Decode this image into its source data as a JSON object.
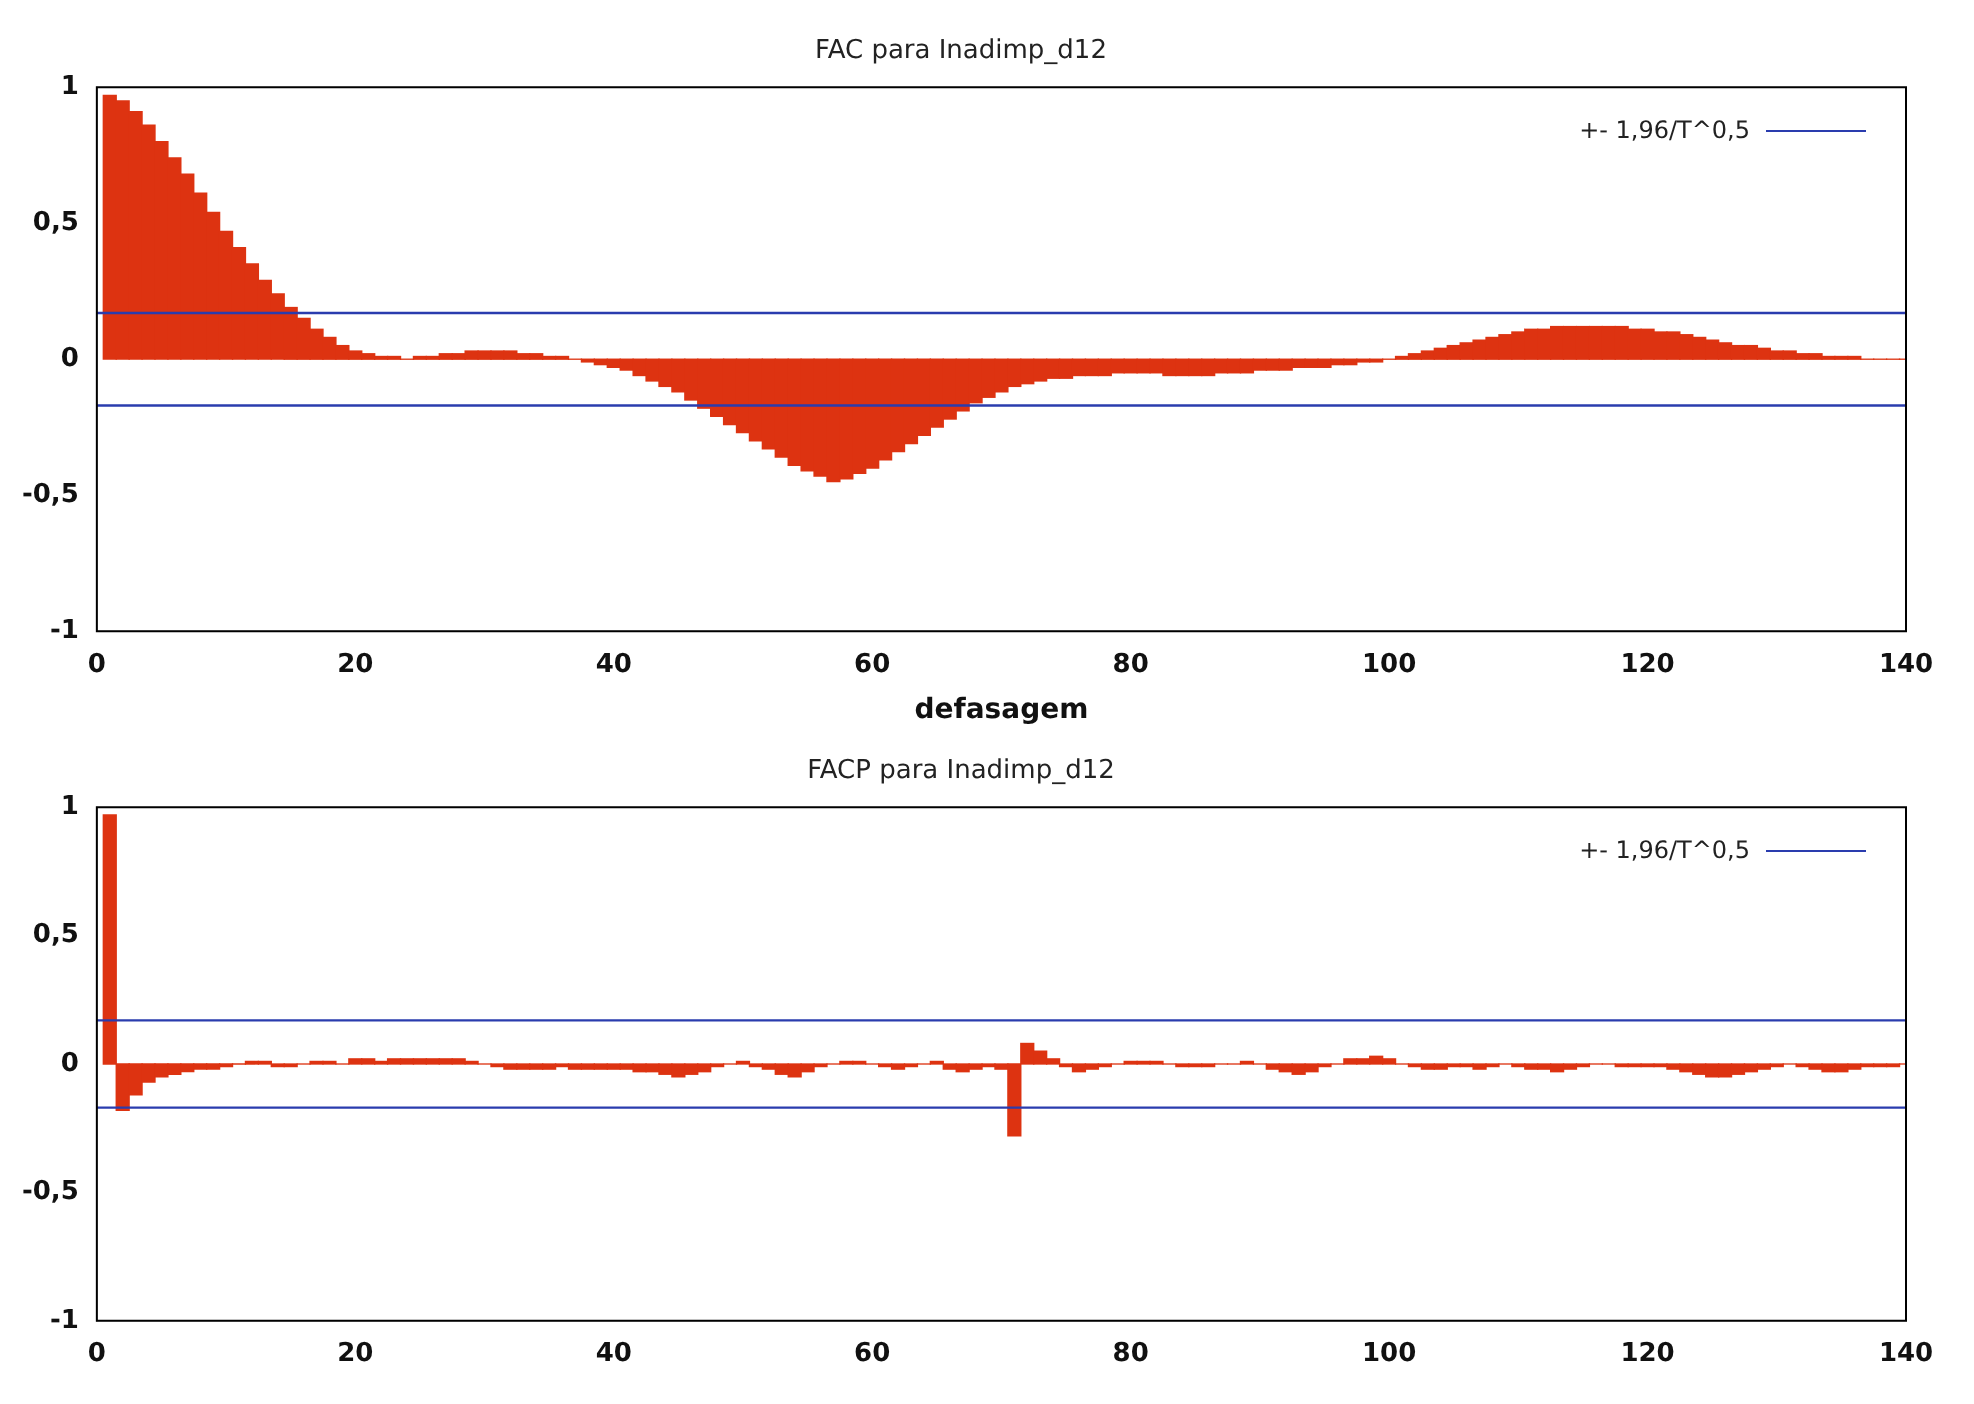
{
  "chart_data": [
    {
      "type": "bar",
      "title": "FAC para Inadimp_d12",
      "xlabel": "defasagem",
      "color": "#dd3311",
      "legend": "top right",
      "x": [
        1,
        2,
        3,
        4,
        5,
        6,
        7,
        8,
        9,
        10,
        11,
        12,
        13,
        14,
        15,
        16,
        17,
        18,
        19,
        20,
        21,
        22,
        23,
        24,
        25,
        26,
        27,
        28,
        29,
        30,
        31,
        32,
        33,
        34,
        35,
        36,
        37,
        38,
        39,
        40,
        41,
        42,
        43,
        44,
        45,
        46,
        47,
        48,
        49,
        50,
        51,
        52,
        53,
        54,
        55,
        56,
        57,
        58,
        59,
        60,
        61,
        62,
        63,
        64,
        65,
        66,
        67,
        68,
        69,
        70,
        71,
        72,
        73,
        74,
        75,
        76,
        77,
        78,
        79,
        80,
        81,
        82,
        83,
        84,
        85,
        86,
        87,
        88,
        89,
        90,
        91,
        92,
        93,
        94,
        95,
        96,
        97,
        98,
        99,
        100,
        101,
        102,
        103,
        104,
        105,
        106,
        107,
        108,
        109,
        110,
        111,
        112,
        113,
        114,
        115,
        116,
        117,
        118,
        119,
        120,
        121,
        122,
        123,
        124,
        125,
        126,
        127,
        128,
        129,
        130,
        131,
        132,
        133,
        134,
        135,
        136,
        137,
        138,
        139,
        140
      ],
      "values": [
        0.97,
        0.95,
        0.91,
        0.86,
        0.8,
        0.74,
        0.68,
        0.61,
        0.54,
        0.47,
        0.41,
        0.35,
        0.29,
        0.24,
        0.19,
        0.15,
        0.11,
        0.08,
        0.05,
        0.03,
        0.02,
        0.01,
        0.01,
        0,
        0.01,
        0.01,
        0.02,
        0.02,
        0.03,
        0.03,
        0.03,
        0.03,
        0.02,
        0.02,
        0.01,
        0.01,
        0,
        -0.01,
        -0.02,
        -0.03,
        -0.04,
        -0.06,
        -0.08,
        -0.1,
        -0.12,
        -0.15,
        -0.18,
        -0.21,
        -0.24,
        -0.27,
        -0.3,
        -0.33,
        -0.36,
        -0.39,
        -0.41,
        -0.43,
        -0.45,
        -0.44,
        -0.42,
        -0.4,
        -0.37,
        -0.34,
        -0.31,
        -0.28,
        -0.25,
        -0.22,
        -0.19,
        -0.16,
        -0.14,
        -0.12,
        -0.1,
        -0.09,
        -0.08,
        -0.07,
        -0.07,
        -0.06,
        -0.06,
        -0.06,
        -0.05,
        -0.05,
        -0.05,
        -0.05,
        -0.06,
        -0.06,
        -0.06,
        -0.06,
        -0.05,
        -0.05,
        -0.05,
        -0.04,
        -0.04,
        -0.04,
        -0.03,
        -0.03,
        -0.03,
        -0.02,
        -0.02,
        -0.01,
        -0.01,
        0,
        0.01,
        0.02,
        0.03,
        0.04,
        0.05,
        0.06,
        0.07,
        0.08,
        0.09,
        0.1,
        0.11,
        0.11,
        0.12,
        0.12,
        0.12,
        0.12,
        0.12,
        0.12,
        0.11,
        0.11,
        0.1,
        0.1,
        0.09,
        0.08,
        0.07,
        0.06,
        0.05,
        0.05,
        0.04,
        0.03,
        0.03,
        0.02,
        0.02,
        0.01,
        0.01,
        0.01,
        0,
        0,
        0,
        0
      ],
      "xlim": [
        0,
        140
      ],
      "xticks": [
        0,
        20,
        40,
        60,
        80,
        100,
        120,
        140
      ],
      "ylim": [
        -1,
        1
      ],
      "yticks": [
        {
          "value": -1,
          "label": "-1"
        },
        {
          "value": -0.5,
          "label": "-0,5"
        },
        {
          "value": 0,
          "label": "0"
        },
        {
          "value": 0.5,
          "label": "0,5"
        },
        {
          "value": 1,
          "label": "1"
        }
      ],
      "ref_lines": [
        {
          "axis": "y",
          "value": 0.17,
          "label": "+- 1,96/T^0,5",
          "color": "#2a3cae"
        },
        {
          "axis": "y",
          "value": -0.17,
          "color": "#2a3cae"
        }
      ]
    },
    {
      "type": "bar",
      "title": "FACP para Inadimp_d12",
      "color": "#dd3311",
      "legend": "top right",
      "x": [
        1,
        2,
        3,
        4,
        5,
        6,
        7,
        8,
        9,
        10,
        11,
        12,
        13,
        14,
        15,
        16,
        17,
        18,
        19,
        20,
        21,
        22,
        23,
        24,
        25,
        26,
        27,
        28,
        29,
        30,
        31,
        32,
        33,
        34,
        35,
        36,
        37,
        38,
        39,
        40,
        41,
        42,
        43,
        44,
        45,
        46,
        47,
        48,
        49,
        50,
        51,
        52,
        53,
        54,
        55,
        56,
        57,
        58,
        59,
        60,
        61,
        62,
        63,
        64,
        65,
        66,
        67,
        68,
        69,
        70,
        71,
        72,
        73,
        74,
        75,
        76,
        77,
        78,
        79,
        80,
        81,
        82,
        83,
        84,
        85,
        86,
        87,
        88,
        89,
        90,
        91,
        92,
        93,
        94,
        95,
        96,
        97,
        98,
        99,
        100,
        101,
        102,
        103,
        104,
        105,
        106,
        107,
        108,
        109,
        110,
        111,
        112,
        113,
        114,
        115,
        116,
        117,
        118,
        119,
        120,
        121,
        122,
        123,
        124,
        125,
        126,
        127,
        128,
        129,
        130,
        131,
        132,
        133,
        134,
        135,
        136,
        137,
        138,
        139,
        140
      ],
      "values": [
        0.97,
        -0.18,
        -0.12,
        -0.07,
        -0.05,
        -0.04,
        -0.03,
        -0.02,
        -0.02,
        -0.01,
        0,
        0.01,
        0.01,
        -0.01,
        -0.01,
        0,
        0.01,
        0.01,
        0,
        0.02,
        0.02,
        0.01,
        0.02,
        0.02,
        0.02,
        0.02,
        0.02,
        0.02,
        0.01,
        0,
        -0.01,
        -0.02,
        -0.02,
        -0.02,
        -0.02,
        -0.01,
        -0.02,
        -0.02,
        -0.02,
        -0.02,
        -0.02,
        -0.03,
        -0.03,
        -0.04,
        -0.05,
        -0.04,
        -0.03,
        -0.01,
        0,
        0.01,
        -0.01,
        -0.02,
        -0.04,
        -0.05,
        -0.03,
        -0.01,
        0,
        0.01,
        0.01,
        0,
        -0.01,
        -0.02,
        -0.01,
        0,
        0.01,
        -0.02,
        -0.03,
        -0.02,
        -0.01,
        -0.02,
        -0.28,
        0.08,
        0.05,
        0.02,
        -0.01,
        -0.03,
        -0.02,
        -0.01,
        0,
        0.01,
        0.01,
        0.01,
        0,
        -0.01,
        -0.01,
        -0.01,
        0,
        0,
        0.01,
        0,
        -0.02,
        -0.03,
        -0.04,
        -0.03,
        -0.01,
        0,
        0.02,
        0.02,
        0.03,
        0.02,
        0,
        -0.01,
        -0.02,
        -0.02,
        -0.01,
        -0.01,
        -0.02,
        -0.01,
        0,
        -0.01,
        -0.02,
        -0.02,
        -0.03,
        -0.02,
        -0.01,
        0,
        0,
        -0.01,
        -0.01,
        -0.01,
        -0.01,
        -0.02,
        -0.03,
        -0.04,
        -0.05,
        -0.05,
        -0.04,
        -0.03,
        -0.02,
        -0.01,
        0,
        -0.01,
        -0.02,
        -0.03,
        -0.03,
        -0.02,
        -0.01,
        -0.01,
        -0.01,
        0
      ],
      "xlim": [
        0,
        140
      ],
      "xticks": [
        0,
        20,
        40,
        60,
        80,
        100,
        120,
        140
      ],
      "ylim": [
        -1,
        1
      ],
      "yticks": [
        {
          "value": -1,
          "label": "-1"
        },
        {
          "value": -0.5,
          "label": "-0,5"
        },
        {
          "value": 0,
          "label": "0"
        },
        {
          "value": 0.5,
          "label": "0,5"
        },
        {
          "value": 1,
          "label": "1"
        }
      ],
      "ref_lines": [
        {
          "axis": "y",
          "value": 0.17,
          "label": "+- 1,96/T^0,5",
          "color": "#2a3cae"
        },
        {
          "axis": "y",
          "value": -0.17,
          "color": "#2a3cae"
        }
      ]
    }
  ]
}
